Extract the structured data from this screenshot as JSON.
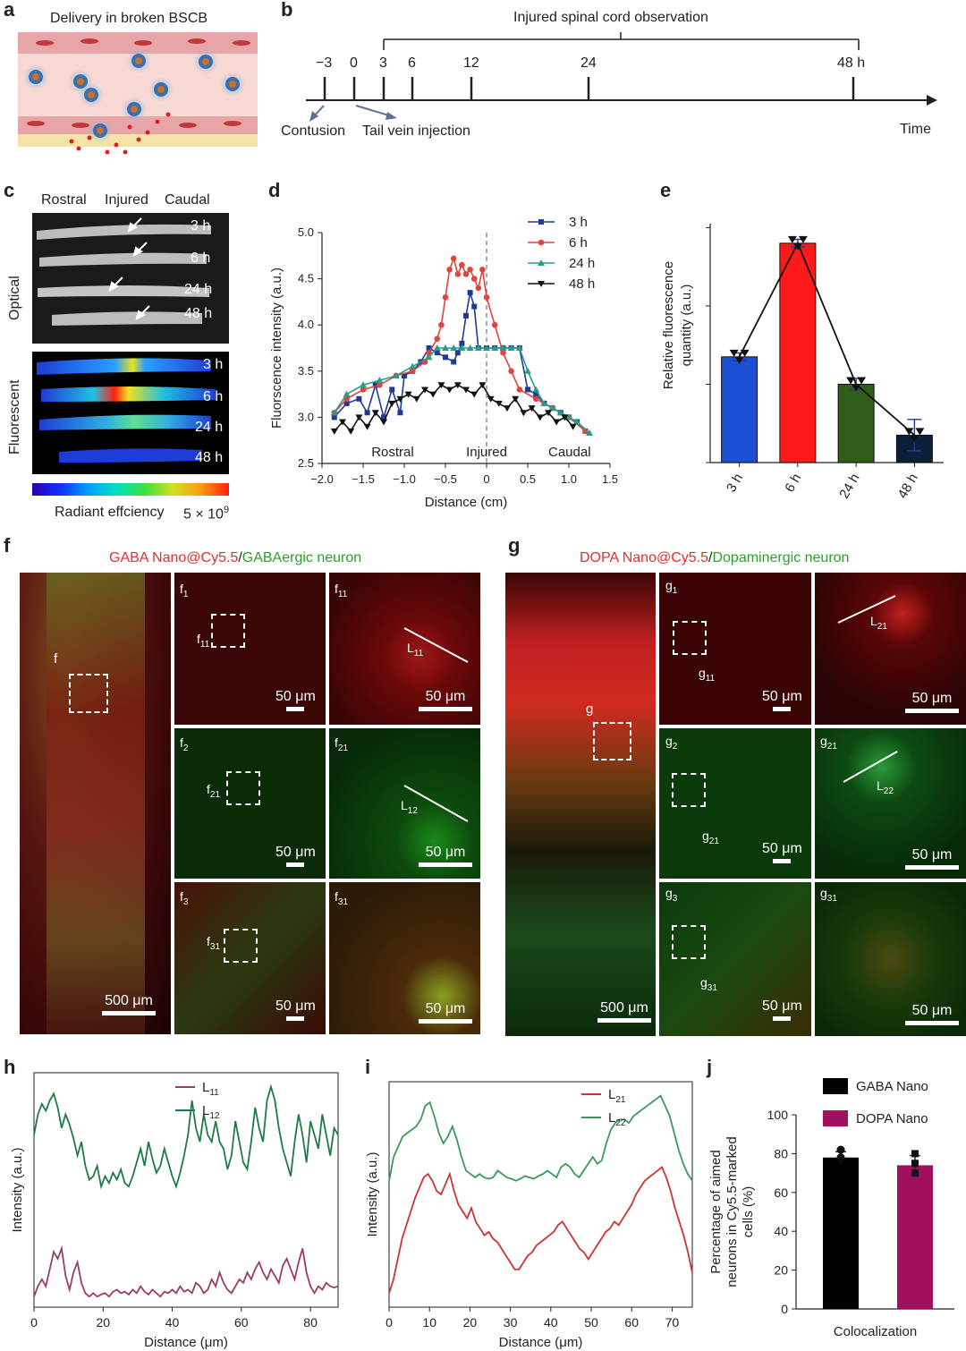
{
  "panel_a": {
    "letter": "a",
    "caption": "Delivery in broken BSCB"
  },
  "panel_b": {
    "letter": "b",
    "bracket_label": "Injured spinal cord observation",
    "ticks": [
      "−3",
      "0",
      "3",
      "6",
      "12",
      "24",
      "48 h"
    ],
    "axis_label": "Time",
    "contusion": "Contusion",
    "injection": "Tail vein injection"
  },
  "panel_c": {
    "letter": "c",
    "col_labels": [
      "Rostral",
      "Injured",
      "Caudal"
    ],
    "row_optical": "Optical",
    "row_fluorescent": "Fluorescent",
    "times": [
      "3 h",
      "6 h",
      "24 h",
      "48 h"
    ],
    "colorbar_label": "Radiant effciency",
    "colorbar_max": "5 × 10",
    "colorbar_exp": "9"
  },
  "panel_d": {
    "letter": "d"
  },
  "panel_e": {
    "letter": "e"
  },
  "panel_f": {
    "letter": "f",
    "title_red": "GABA Nano@Cy5.5",
    "title_sep": "/",
    "title_green": "GABAergic neuron",
    "big_scale": "500 μm",
    "big_tag": "f",
    "scale": "50 μm",
    "tags": {
      "f1": "f",
      "f1s": "1",
      "f11": "f",
      "f11s": "11",
      "L11": "L",
      "L11s": "11",
      "f2": "f",
      "f2s": "2",
      "f21": "f",
      "f21s": "21",
      "L12": "L",
      "L12s": "12",
      "f3": "f",
      "f3s": "3",
      "f31": "f",
      "f31s": "31"
    }
  },
  "panel_g": {
    "letter": "g",
    "title_red": "DOPA Nano@Cy5.5",
    "title_sep": "/",
    "title_green": "Dopaminergic neuron",
    "big_scale": "500 μm",
    "big_tag": "g",
    "scale": "50 μm",
    "tags": {
      "g1": "g",
      "g1s": "1",
      "g11": "g",
      "g11s": "11",
      "L21": "L",
      "L21s": "21",
      "g2": "g",
      "g2s": "2",
      "g21": "g",
      "g21s": "21",
      "L22": "L",
      "L22s": "22",
      "g3": "g",
      "g3s": "3",
      "g31": "g",
      "g31s": "31"
    }
  },
  "panel_h": {
    "letter": "h"
  },
  "panel_i": {
    "letter": "i"
  },
  "panel_j": {
    "letter": "j"
  },
  "colors": {
    "s3h": "#1f3a93",
    "s6h": "#e0443f",
    "s24h": "#2a9a8a",
    "s48h": "#111111",
    "bar3h": "#1a4fd6",
    "bar6h": "#ff1a1a",
    "bar24h": "#2f5e17",
    "bar48h": "#0a1f3a",
    "L11": "#9b3b6a",
    "L12": "#1f7a46",
    "L21": "#cc3333",
    "L22": "#3a9a5a",
    "gaba": "#000000",
    "dopa": "#a0105e"
  },
  "chart_data": [
    {
      "id": "d",
      "type": "line",
      "xlabel": "Distance (cm)",
      "ylabel": "Fluorscence intensity (a.u.)",
      "xlim": [
        -2.0,
        1.5
      ],
      "ylim": [
        2.5,
        5.0
      ],
      "xticks": [
        "−2.0",
        "−1.5",
        "−1.0",
        "−0.5",
        "0",
        "0.5",
        "1.0",
        "1.5"
      ],
      "yticks": [
        "2.5",
        "3.0",
        "3.5",
        "4.0",
        "4.5",
        "5.0"
      ],
      "annotations": [
        "Rostral",
        "Injured",
        "Caudal"
      ],
      "series": [
        {
          "name": "3 h",
          "x": [
            -1.85,
            -1.7,
            -1.55,
            -1.45,
            -1.35,
            -1.25,
            -1.15,
            -1.05,
            -1.0,
            -0.9,
            -0.8,
            -0.7,
            -0.6,
            -0.5,
            -0.4,
            -0.35,
            -0.3,
            -0.25,
            -0.2,
            -0.15,
            -0.1,
            0,
            0.1,
            0.2,
            0.3,
            0.4,
            0.5,
            0.6,
            0.7,
            0.8,
            0.9,
            1.0,
            1.1,
            1.2
          ],
          "y": [
            3.0,
            3.15,
            3.2,
            3.05,
            3.35,
            3.0,
            3.3,
            3.05,
            3.45,
            3.5,
            3.6,
            3.75,
            3.7,
            3.65,
            3.6,
            3.7,
            3.8,
            4.1,
            4.35,
            4.2,
            3.75,
            3.75,
            3.75,
            3.75,
            3.75,
            3.75,
            3.3,
            3.25,
            3.15,
            3.1,
            3.05,
            3.0,
            2.95,
            2.85
          ]
        },
        {
          "name": "6 h",
          "x": [
            -1.85,
            -1.7,
            -1.5,
            -1.3,
            -1.1,
            -0.9,
            -0.75,
            -0.7,
            -0.6,
            -0.55,
            -0.5,
            -0.45,
            -0.4,
            -0.35,
            -0.3,
            -0.25,
            -0.2,
            -0.15,
            -0.1,
            -0.05,
            0,
            0.1,
            0.2,
            0.3,
            0.4,
            0.6,
            0.8,
            1.0,
            1.2
          ],
          "y": [
            3.05,
            3.2,
            3.3,
            3.35,
            3.45,
            3.5,
            3.6,
            3.7,
            3.85,
            4.0,
            4.3,
            4.6,
            4.72,
            4.55,
            4.65,
            4.55,
            4.6,
            4.5,
            4.4,
            4.6,
            4.3,
            4.0,
            3.7,
            3.5,
            3.3,
            3.2,
            3.1,
            3.0,
            2.85
          ]
        },
        {
          "name": "24 h",
          "x": [
            -1.85,
            -1.7,
            -1.5,
            -1.3,
            -1.1,
            -0.9,
            -0.7,
            -0.6,
            -0.5,
            -0.4,
            -0.3,
            -0.2,
            -0.1,
            0,
            0.1,
            0.2,
            0.3,
            0.4,
            0.5,
            0.6,
            0.7,
            0.8,
            0.9,
            1.0,
            1.1,
            1.25
          ],
          "y": [
            3.05,
            3.25,
            3.35,
            3.4,
            3.45,
            3.55,
            3.65,
            3.75,
            3.75,
            3.75,
            3.75,
            3.75,
            3.75,
            3.75,
            3.75,
            3.75,
            3.75,
            3.75,
            3.5,
            3.3,
            3.15,
            3.1,
            3.05,
            3.0,
            2.95,
            2.83
          ]
        },
        {
          "name": "48 h",
          "x": [
            -1.85,
            -1.75,
            -1.65,
            -1.55,
            -1.45,
            -1.35,
            -1.25,
            -1.15,
            -1.05,
            -0.95,
            -0.85,
            -0.75,
            -0.65,
            -0.55,
            -0.45,
            -0.35,
            -0.25,
            -0.15,
            -0.05,
            0.05,
            0.15,
            0.25,
            0.35,
            0.45,
            0.55,
            0.65,
            0.75,
            0.85,
            0.95,
            1.05
          ],
          "y": [
            2.85,
            2.95,
            2.85,
            3.0,
            2.9,
            3.05,
            2.95,
            3.15,
            3.2,
            3.25,
            3.2,
            3.3,
            3.25,
            3.35,
            3.3,
            3.35,
            3.3,
            3.25,
            3.35,
            3.2,
            3.15,
            3.1,
            3.2,
            3.05,
            3.1,
            3.0,
            3.05,
            2.95,
            3.0,
            2.9
          ]
        }
      ]
    },
    {
      "id": "e",
      "type": "bar",
      "ylabel": "Relative fluorescence quantity (a.u.)",
      "categories": [
        "3 h",
        "6 h",
        "24 h",
        "48 h"
      ],
      "values": [
        2.7,
        5.6,
        2.0,
        0.7
      ],
      "errors": [
        0.1,
        0.1,
        0.15,
        0.4
      ],
      "ylim": [
        0,
        6.1
      ]
    },
    {
      "id": "h",
      "type": "line",
      "xlabel": "Distance (μm)",
      "ylabel": "Intensity (a.u.)",
      "xlim": [
        0,
        88
      ],
      "xticks": [
        "0",
        "20",
        "40",
        "60",
        "80"
      ],
      "series": [
        {
          "name": "L",
          "sub": "11",
          "y": [
            0.05,
            0.2,
            0.3,
            0.2,
            0.45,
            0.7,
            0.6,
            0.75,
            0.35,
            0.15,
            0.4,
            0.55,
            0.25,
            0.1,
            0.05,
            0.1,
            0.05,
            0.08,
            0.1,
            0.05,
            0.12,
            0.15,
            0.1,
            0.12,
            0.08,
            0.15,
            0.1,
            0.2,
            0.12,
            0.08,
            0.15,
            0.1,
            0.05,
            0.12,
            0.1,
            0.15,
            0.1,
            0.2,
            0.12,
            0.15,
            0.1,
            0.25,
            0.2,
            0.1,
            0.15,
            0.3,
            0.2,
            0.4,
            0.25,
            0.15,
            0.1,
            0.2,
            0.3,
            0.25,
            0.4,
            0.3,
            0.45,
            0.55,
            0.4,
            0.3,
            0.45,
            0.35,
            0.25,
            0.5,
            0.6,
            0.45,
            0.3,
            0.55,
            0.75,
            0.4,
            0.2,
            0.1,
            0.2,
            0.15,
            0.25,
            0.2,
            0.18,
            0.2
          ]
        },
        {
          "name": "L",
          "sub": "12",
          "y": [
            2.4,
            2.7,
            2.85,
            2.75,
            2.9,
            3.0,
            2.8,
            2.5,
            2.7,
            2.55,
            2.35,
            2.1,
            2.3,
            1.95,
            1.75,
            1.8,
            1.95,
            1.65,
            1.8,
            1.7,
            1.85,
            1.75,
            1.9,
            1.7,
            1.65,
            1.8,
            2.0,
            2.2,
            1.95,
            2.3,
            2.05,
            1.85,
            1.95,
            2.2,
            2.0,
            1.8,
            1.65,
            1.85,
            2.1,
            2.4,
            2.9,
            2.5,
            2.3,
            2.7,
            2.4,
            2.3,
            2.6,
            2.3,
            2.2,
            1.9,
            2.1,
            2.6,
            2.3,
            2.0,
            1.9,
            2.3,
            2.8,
            2.5,
            2.3,
            2.9,
            3.1,
            2.9,
            2.5,
            2.2,
            2.0,
            1.8,
            2.3,
            2.7,
            2.4,
            2.0,
            2.6,
            2.4,
            2.2,
            2.7,
            2.4,
            2.1,
            2.5,
            2.4
          ]
        }
      ]
    },
    {
      "id": "i",
      "type": "line",
      "xlabel": "Distance (μm)",
      "ylabel": "Intensity (a.u.)",
      "xlim": [
        0,
        75
      ],
      "xticks": [
        "0",
        "10",
        "20",
        "30",
        "40",
        "50",
        "60",
        "70"
      ],
      "series": [
        {
          "name": "L",
          "sub": "21",
          "y": [
            0.1,
            0.3,
            0.6,
            0.9,
            1.1,
            1.3,
            1.5,
            1.65,
            1.8,
            1.85,
            1.75,
            1.6,
            1.55,
            1.7,
            1.85,
            1.6,
            1.4,
            1.3,
            1.2,
            1.35,
            1.15,
            1.05,
            0.95,
            1.0,
            0.9,
            0.85,
            0.75,
            0.65,
            0.55,
            0.45,
            0.45,
            0.55,
            0.65,
            0.7,
            0.8,
            0.85,
            0.9,
            0.95,
            1.0,
            1.1,
            1.15,
            1.05,
            0.95,
            0.85,
            0.75,
            0.7,
            0.6,
            0.7,
            0.8,
            0.9,
            1.0,
            1.05,
            1.15,
            1.1,
            1.2,
            1.3,
            1.4,
            1.55,
            1.65,
            1.75,
            1.8,
            1.85,
            1.9,
            1.95,
            1.8,
            1.6,
            1.35,
            1.15,
            0.95,
            0.7,
            0.4
          ]
        },
        {
          "name": "L",
          "sub": "22",
          "y": [
            1.75,
            2.1,
            2.25,
            2.4,
            2.45,
            2.5,
            2.55,
            2.65,
            2.85,
            2.9,
            2.7,
            2.45,
            2.3,
            2.4,
            2.55,
            2.35,
            2.1,
            1.9,
            1.85,
            1.8,
            1.85,
            1.8,
            1.78,
            1.8,
            1.9,
            1.85,
            1.8,
            1.78,
            1.75,
            1.78,
            1.82,
            1.8,
            1.78,
            1.82,
            1.85,
            1.9,
            1.85,
            1.8,
            1.95,
            2.0,
            1.95,
            1.85,
            1.8,
            1.9,
            2.0,
            2.1,
            2.0,
            2.05,
            2.3,
            2.5,
            2.6,
            2.65,
            2.65,
            2.6,
            2.7,
            2.75,
            2.8,
            2.85,
            2.9,
            2.95,
            3.0,
            2.85,
            2.7,
            2.45,
            2.2,
            2.0,
            1.85,
            1.75
          ]
        }
      ]
    },
    {
      "id": "j",
      "type": "bar",
      "ylabel": "Percentage of aimed neurons in Cy5.5-marked cells (%)",
      "xlabel": "Colocalization",
      "series": [
        {
          "name": "GABA Nano",
          "value": 78,
          "error": 3,
          "points": [
            82,
            78
          ]
        },
        {
          "name": "DOPA Nano",
          "value": 74,
          "error": 5,
          "points": [
            80,
            75,
            70
          ]
        }
      ],
      "yticks": [
        "0",
        "20",
        "40",
        "60",
        "80",
        "100"
      ],
      "ylim": [
        0,
        100
      ]
    }
  ]
}
